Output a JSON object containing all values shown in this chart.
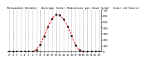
{
  "title": "Milwaukee Weather  Average Solar Radiation per Hour W/m2  (Last 24 Hours)",
  "x": [
    0,
    1,
    2,
    3,
    4,
    5,
    6,
    7,
    8,
    9,
    10,
    11,
    12,
    13,
    14,
    15,
    16,
    17,
    18,
    19,
    20,
    21,
    22,
    23
  ],
  "y": [
    0,
    0,
    0,
    0,
    0,
    0,
    0,
    30,
    120,
    260,
    420,
    550,
    620,
    610,
    540,
    420,
    270,
    110,
    20,
    0,
    0,
    0,
    0,
    0
  ],
  "line_color": "red",
  "line_style": "--",
  "marker": "o",
  "marker_color": "black",
  "marker_size": 1.8,
  "grid_color": "#999999",
  "grid_style": "--",
  "bg_color": "#ffffff",
  "ylim": [
    0,
    700
  ],
  "xlim": [
    -0.5,
    23.5
  ],
  "yticks": [
    0,
    100,
    200,
    300,
    400,
    500,
    600,
    700
  ],
  "xticks": [
    0,
    1,
    2,
    3,
    4,
    5,
    6,
    7,
    8,
    9,
    10,
    11,
    12,
    13,
    14,
    15,
    16,
    17,
    18,
    19,
    20,
    21,
    22,
    23
  ],
  "title_fontsize": 3.2,
  "tick_fontsize": 2.8
}
